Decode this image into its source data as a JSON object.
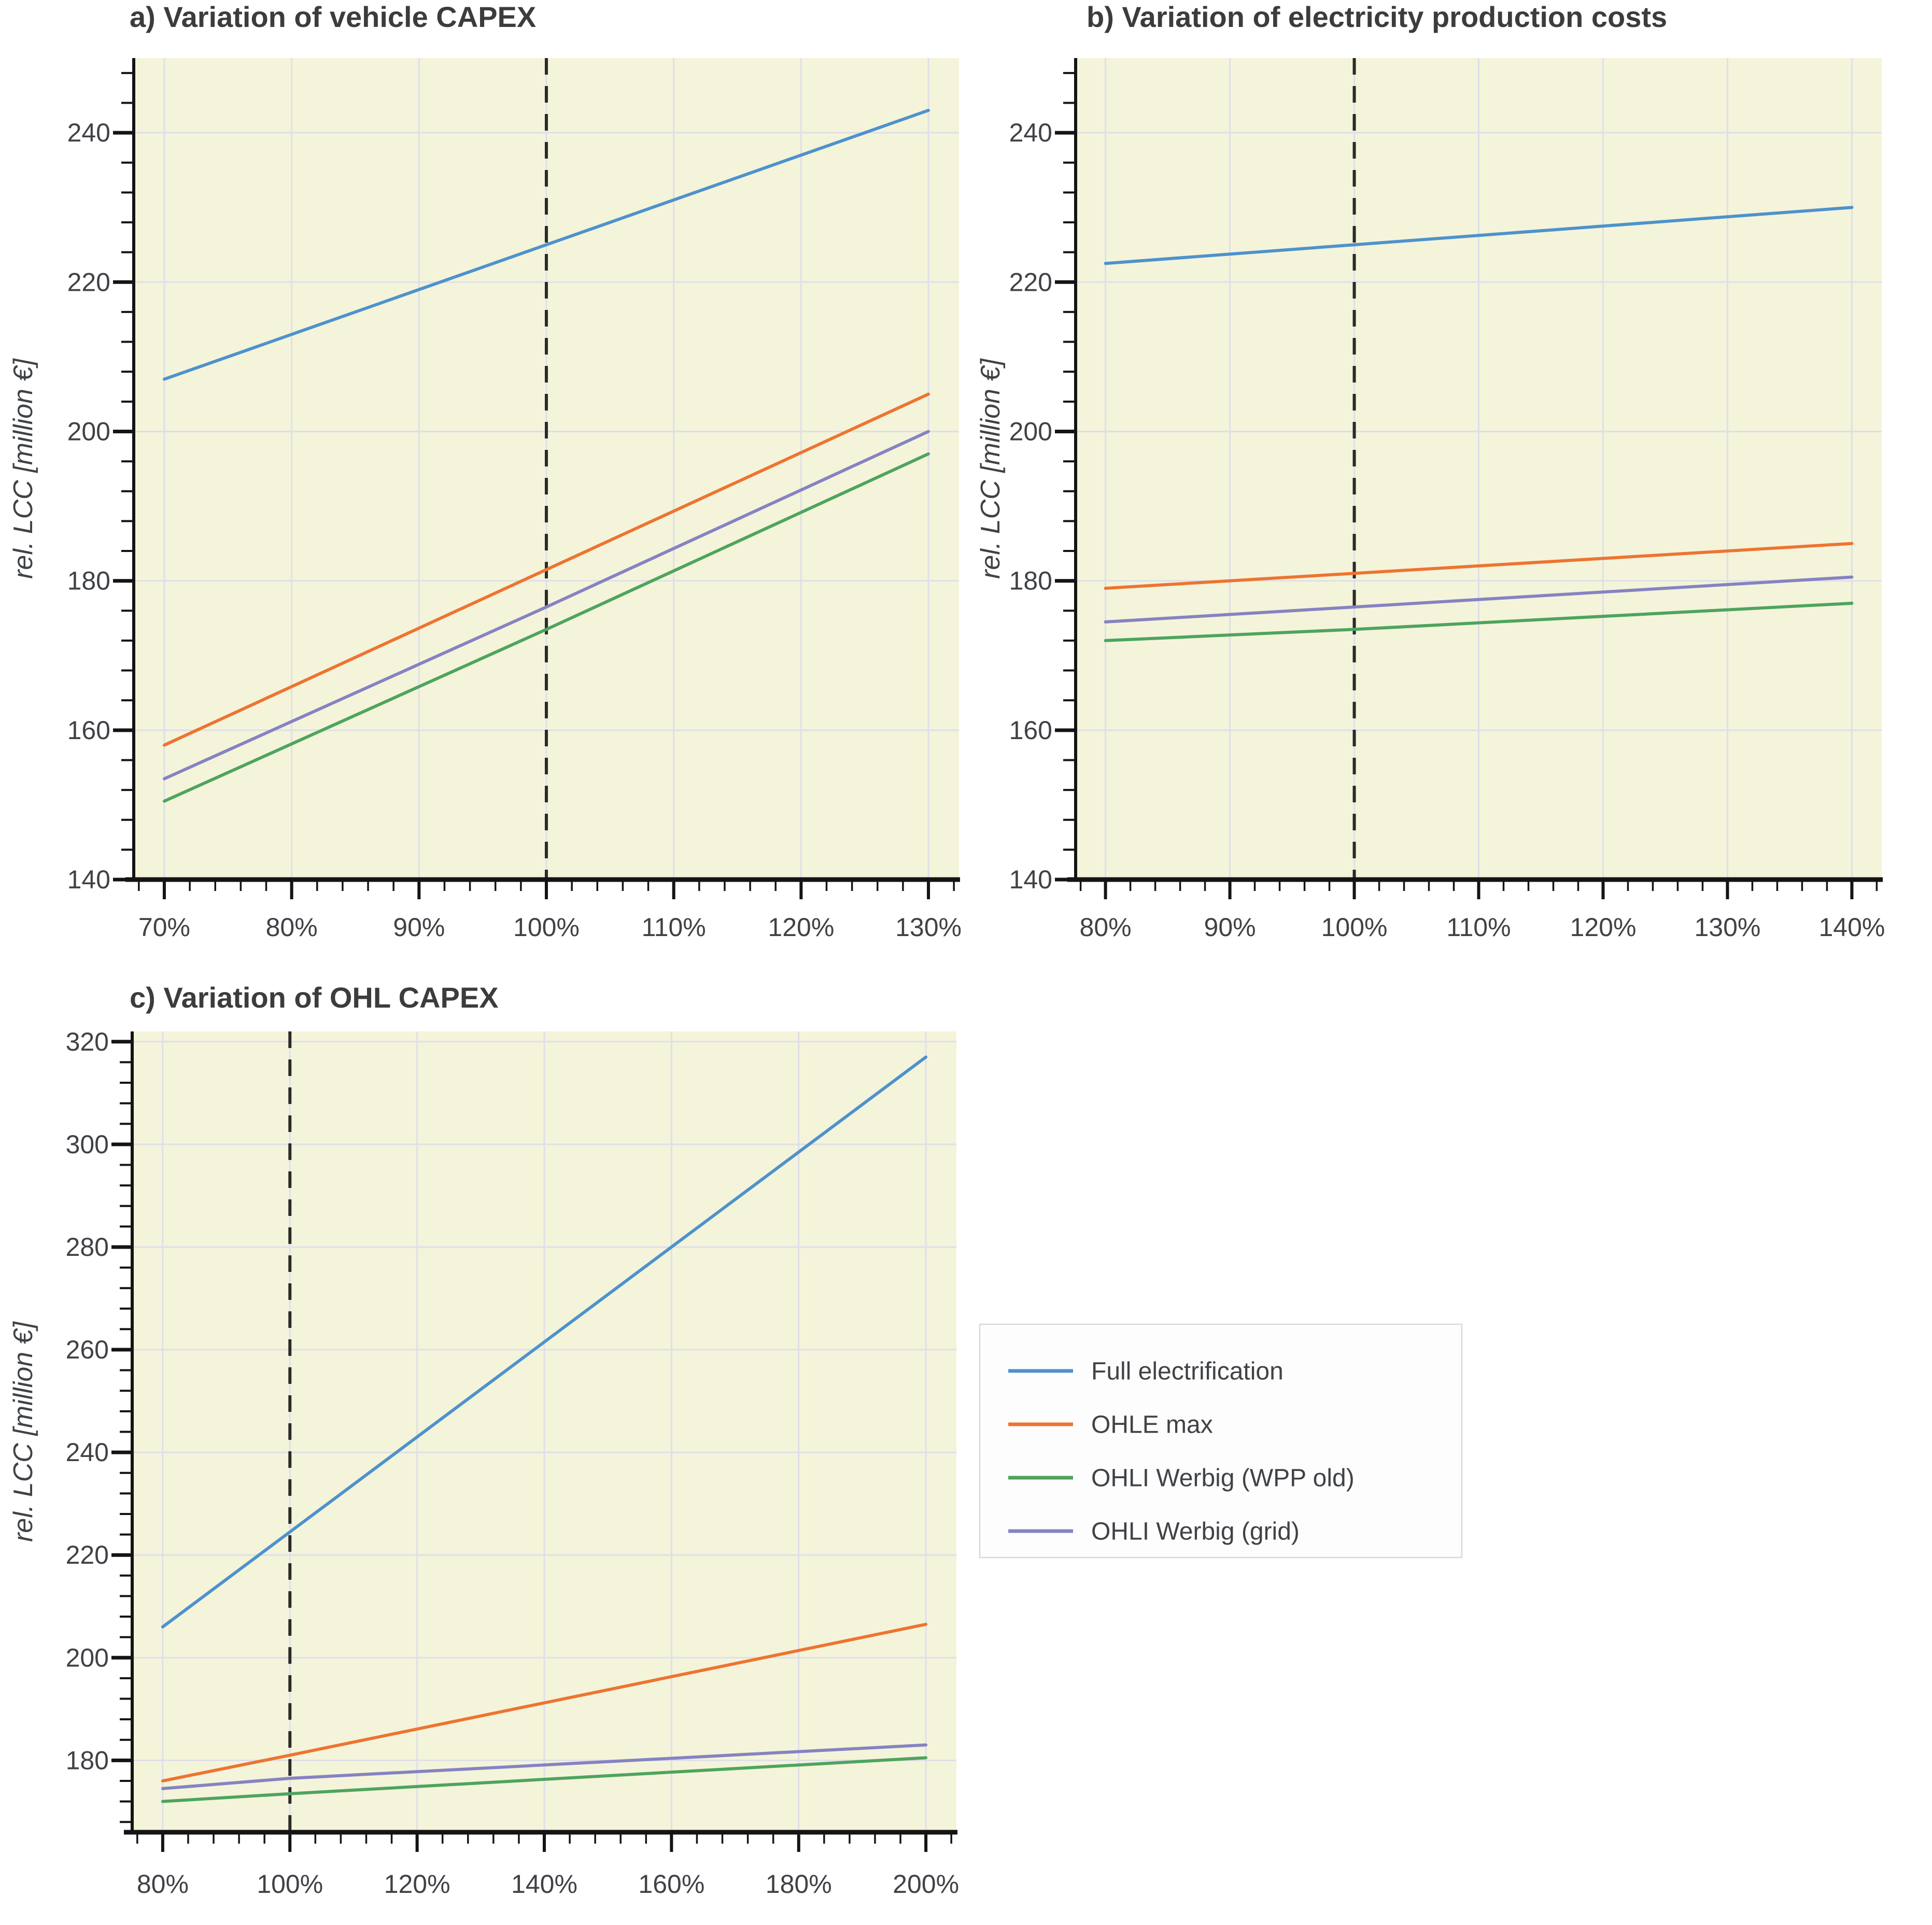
{
  "figure": {
    "background": "#ffffff",
    "plot_background": "#f4f4da",
    "grid_color": "#dfdfe9",
    "axis_color": "#141414",
    "reference_line_color": "#2b2b2b",
    "title_color": "#3c3c3c",
    "tick_label_color": "#3f4246",
    "ylabel_text": "rel. LCC [million €]"
  },
  "legend": {
    "position": "bottom-right-quadrant",
    "entries": [
      {
        "label": "Full electrification",
        "color": "#4d92cc"
      },
      {
        "label": "OHLE max",
        "color": "#ed7431"
      },
      {
        "label": "OHLI Werbig (WPP old)",
        "color": "#4ea45e"
      },
      {
        "label": "OHLI Werbig (grid)",
        "color": "#8583c2"
      }
    ]
  },
  "chart_data": [
    {
      "id": "a",
      "type": "line",
      "title": "a) Variation of vehicle CAPEX",
      "xlabel": "",
      "ylabel": "rel. LCC [million €]",
      "x_tick_suffix": "%",
      "x_ticks": [
        70,
        80,
        90,
        100,
        110,
        120,
        130
      ],
      "x_minor_step": 2,
      "reference_x": 100,
      "ylim": [
        140,
        250
      ],
      "y_ticks": [
        140,
        160,
        180,
        200,
        220,
        240
      ],
      "y_minor_step": 4,
      "grid": true,
      "series": [
        {
          "name": "Full electrification",
          "x": [
            70,
            100,
            130
          ],
          "y": [
            207,
            225,
            243
          ]
        },
        {
          "name": "OHLE max",
          "x": [
            70,
            100,
            130
          ],
          "y": [
            158,
            181.5,
            205
          ]
        },
        {
          "name": "OHLI Werbig (WPP old)",
          "x": [
            70,
            100,
            130
          ],
          "y": [
            150.5,
            173.5,
            197
          ]
        },
        {
          "name": "OHLI Werbig (grid)",
          "x": [
            70,
            100,
            130
          ],
          "y": [
            153.5,
            176.5,
            200
          ]
        }
      ]
    },
    {
      "id": "b",
      "type": "line",
      "title": "b) Variation of electricity production costs",
      "xlabel": "",
      "ylabel": "rel. LCC [million €]",
      "x_tick_suffix": "%",
      "x_ticks": [
        80,
        90,
        100,
        110,
        120,
        130,
        140
      ],
      "x_minor_step": 2,
      "reference_x": 100,
      "ylim": [
        140,
        250
      ],
      "y_ticks": [
        140,
        160,
        180,
        200,
        220,
        240
      ],
      "y_minor_step": 4,
      "grid": true,
      "series": [
        {
          "name": "Full electrification",
          "x": [
            80,
            100,
            140
          ],
          "y": [
            222.5,
            225,
            230
          ]
        },
        {
          "name": "OHLE max",
          "x": [
            80,
            100,
            140
          ],
          "y": [
            179,
            181,
            185
          ]
        },
        {
          "name": "OHLI Werbig (WPP old)",
          "x": [
            80,
            100,
            140
          ],
          "y": [
            172,
            173.5,
            177
          ]
        },
        {
          "name": "OHLI Werbig (grid)",
          "x": [
            80,
            100,
            140
          ],
          "y": [
            174.5,
            176.5,
            180.5
          ]
        }
      ]
    },
    {
      "id": "c",
      "type": "line",
      "title": "c) Variation of OHL CAPEX",
      "xlabel": "",
      "ylabel": "rel. LCC [million €]",
      "x_tick_suffix": "%",
      "x_ticks": [
        80,
        100,
        120,
        140,
        160,
        180,
        200
      ],
      "x_minor_step": 4,
      "reference_x": 100,
      "ylim": [
        166,
        322
      ],
      "y_ticks": [
        180,
        200,
        220,
        240,
        260,
        280,
        300,
        320
      ],
      "y_minor_step": 4,
      "grid": true,
      "series": [
        {
          "name": "Full electrification",
          "x": [
            80,
            100,
            200
          ],
          "y": [
            206,
            224.5,
            317
          ]
        },
        {
          "name": "OHLE max",
          "x": [
            80,
            100,
            200
          ],
          "y": [
            176,
            181,
            206.5
          ]
        },
        {
          "name": "OHLI Werbig (WPP old)",
          "x": [
            80,
            100,
            200
          ],
          "y": [
            172,
            173.5,
            180.5
          ]
        },
        {
          "name": "OHLI Werbig (grid)",
          "x": [
            80,
            100,
            200
          ],
          "y": [
            174.5,
            176.5,
            183
          ]
        }
      ]
    }
  ]
}
